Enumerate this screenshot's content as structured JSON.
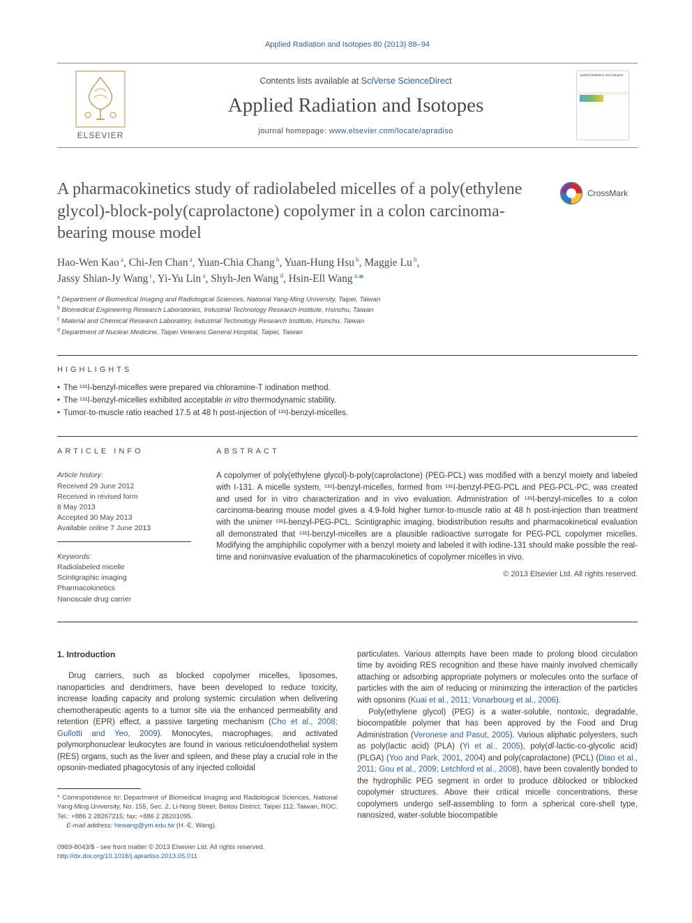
{
  "top_link": "Applied Radiation and Isotopes 80 (2013) 88–94",
  "header": {
    "contents_prefix": "Contents lists available at ",
    "contents_link": "SciVerse ScienceDirect",
    "journal": "Applied Radiation and Isotopes",
    "homepage_prefix": "journal homepage: ",
    "homepage_url": "www.elsevier.com/locate/apradiso",
    "elsevier_word": "ELSEVIER",
    "cover_caption": "Applied Radiation and Isotopes"
  },
  "title": "A pharmacokinetics study of radiolabeled micelles of a poly(ethylene glycol)-block-poly(caprolactone) copolymer in a colon carcinoma-bearing mouse model",
  "crossmark": "CrossMark",
  "authors_html": "Hao-Wen Kao|a|, Chi-Jen Chan|a|, Yuan-Chia Chang|b|, Yuan-Hung Hsu|b|, Maggie Lu|b|, Jassy Shian-Jy Wang|c|, Yi-Yu Lin|a|, Shyh-Jen Wang|d|, Hsin-Ell Wang|a,*",
  "affiliations": [
    {
      "sup": "a",
      "text": "Department of Biomedical Imaging and Radiological Sciences, National Yang-Ming University, Taipei, Taiwan"
    },
    {
      "sup": "b",
      "text": "Biomedical Engineering Research Laboratories, Industrial Technology Research Institute, Hsinchu, Taiwan"
    },
    {
      "sup": "c",
      "text": "Material and Chemical Research Laboratory, Industrial Technology Research Institute, Hsinchu, Taiwan"
    },
    {
      "sup": "d",
      "text": "Department of Nuclear Medicine, Taipei Veterans General Hospital, Taipei, Taiwan"
    }
  ],
  "highlights": {
    "label": "HIGHLIGHTS",
    "items": [
      "The ¹³¹I-benzyl-micelles were prepared via chloramine-T iodination method.",
      "The ¹³¹I-benzyl-micelles exhibited acceptable in vitro thermodynamic stability.",
      "Tumor-to-muscle ratio reached 17.5 at 48 h post-injection of ¹³¹I-benzyl-micelles."
    ]
  },
  "article_info": {
    "label": "ARTICLE INFO",
    "history_label": "Article history:",
    "received": "Received 29 June 2012",
    "revised1": "Received in revised form",
    "revised2": "8 May 2013",
    "accepted": "Accepted 30 May 2013",
    "online": "Available online 7 June 2013",
    "keywords_label": "Keywords:",
    "keywords": [
      "Radiolabeled micelle",
      "Scintigraphic imaging",
      "Pharmacokinetics",
      "Nanoscale drug carrier"
    ]
  },
  "abstract": {
    "label": "ABSTRACT",
    "text": "A copolymer of poly(ethylene glycol)-b-poly(caprolactone) (PEG-PCL) was modified with a benzyl moiety and labeled with I-131. A micelle system, ¹³¹I-benzyl-micelles, formed from ¹³¹I-benzyl-PEG-PCL and PEG-PCL-PC, was created and used for in vitro characterization and in vivo evaluation. Administration of ¹³¹I-benzyl-micelles to a colon carcinoma-bearing mouse model gives a 4.9-fold higher tumor-to-muscle ratio at 48 h post-injection than treatment with the unimer ¹³¹I-benzyl-PEG-PCL. Scintigraphic imaging, biodistribution results and pharmacokinetical evaluation all demonstrated that ¹³¹I-benzyl-micelles are a plausible radioactive surrogate for PEG-PCL copolymer micelles. Modifying the amphiphilic copolymer with a benzyl moiety and labeled it with iodine-131 should make possible the real-time and noninvasive evaluation of the pharmacokinetics of copolymer micelles in vivo.",
    "copyright": "© 2013 Elsevier Ltd. All rights reserved."
  },
  "intro": {
    "heading": "1.  Introduction",
    "left_para": "Drug carriers, such as blocked copolymer micelles, liposomes, nanoparticles and dendrimers, have been developed to reduce toxicity, increase loading capacity and prolong systemic circulation when delivering chemotherapeutic agents to a tumor site via the enhanced permeability and retention (EPR) effect, a passive targeting mechanism (Cho et al., 2008; Gullotti and Yeo, 2009). Monocytes, macrophages, and activated polymorphonuclear leukocytes are found in various reticuloendothelial system (RES) organs, such as the liver and spleen, and these play a crucial role in the opsonin-mediated phagocytosis of any injected colloidal",
    "right_para1": "particulates. Various attempts have been made to prolong blood circulation time by avoiding RES recognition and these have mainly involved chemically attaching or adsorbing appropriate polymers or molecules onto the surface of particles with the aim of reducing or minimizing the interaction of the particles with opsonins (Kuai et al., 2011; Vonarbourg et al., 2006).",
    "right_para2": "Poly(ethylene glycol) (PEG) is a water-soluble, nontoxic, degradable, biocompatible polymer that has been approved by the Food and Drug Administration (Veronese and Pasut, 2005). Various aliphatic polyesters, such as poly(lactic acid) (PLA) (Yi et al., 2005), poly(dl-lactic-co-glycolic acid) (PLGA) (Yoo and Park, 2001, 2004) and poly(caprolactone) (PCL) (Diao et al., 2011; Gou et al., 2009; Letchford et al., 2008), have been covalently bonded to the hydrophilic PEG segment in order to produce diblocked or triblocked copolymer structures. Above their critical micelle concentrations, these copolymers undergo self-assembling to form a spherical core-shell type, nanosized, water-soluble biocompatible"
  },
  "footnote": {
    "corr": "* Correspondence to: Department of Biomedical Imaging and Radiological Sciences, National Yang-Ming University, No. 155, Sec. 2, Li-Nong Street, Beitou District, Taipei 112, Taiwan, ROC. Tel.: +886 2 28267215; fax: +886 2 28201095.",
    "email_label": "E-mail address: ",
    "email": "hewang@ym.edu.tw",
    "email_sfx": " (H.-E. Wang)."
  },
  "bottom": {
    "issn": "0969-8043/$ - see front matter © 2013 Elsevier Ltd. All rights reserved.",
    "doi": "http://dx.doi.org/10.1016/j.apradiso.2013.05.011"
  },
  "colors": {
    "link": "#2e5f9b",
    "rule": "#343434",
    "text": "#3a3a3a",
    "muted": "#4a4a4a"
  },
  "typography": {
    "body_pt": 11.5,
    "title_pt": 24,
    "journal_pt": 29,
    "authors_pt": 15.5,
    "affil_pt": 9.5,
    "footnote_pt": 9.5
  }
}
